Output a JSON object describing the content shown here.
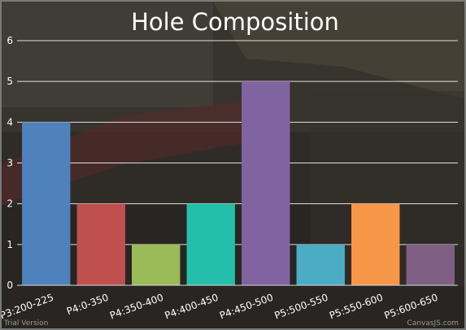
{
  "chart_data": {
    "type": "bar",
    "title": "Hole Composition",
    "categories": [
      "P3:200-225",
      "P4:0-350",
      "P4:350-400",
      "P4:400-450",
      "P4:450-500",
      "P5:500-550",
      "P5:550-600",
      "P5:600-650"
    ],
    "values": [
      4,
      2,
      1,
      2,
      5,
      1,
      2,
      1
    ],
    "colors": [
      "#4f81bc",
      "#c0504e",
      "#9bbb58",
      "#23bfaa",
      "#8064a1",
      "#4aacc5",
      "#f79647",
      "#7f6084"
    ],
    "ylim": [
      0,
      6
    ],
    "yticks": [
      0,
      1,
      2,
      3,
      4,
      5,
      6
    ],
    "xlabel": "",
    "ylabel": "",
    "grid": true,
    "legend": "none"
  },
  "watermark": {
    "left": "Trial Version",
    "right": "CanvasJS.com"
  }
}
